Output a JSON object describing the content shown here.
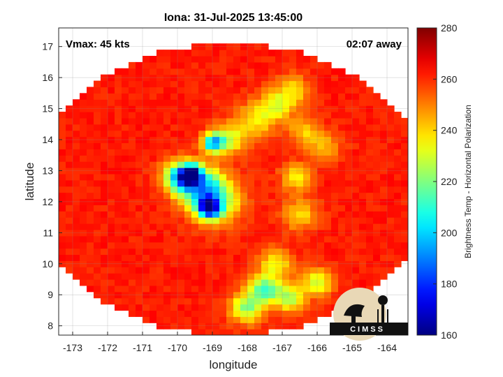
{
  "chart_data": {
    "type": "heatmap",
    "title": "Iona: 31-Jul-2025 13:45:00",
    "xlabel": "longitude",
    "ylabel": "latitude",
    "xlim": [
      -173.4,
      -163.4
    ],
    "ylim": [
      7.7,
      17.6
    ],
    "x_ticks": [
      -173,
      -172,
      -171,
      -170,
      -169,
      -168,
      -167,
      -166,
      -165,
      -164
    ],
    "y_ticks": [
      8,
      9,
      10,
      11,
      12,
      13,
      14,
      15,
      16,
      17
    ],
    "grid": true,
    "annotations": {
      "left": "Vmax: 45 kts",
      "right": "02:07 away"
    },
    "colorbar": {
      "label": "Brightness Temp - Horizontal Polarization",
      "range": [
        160,
        280
      ],
      "ticks": [
        160,
        180,
        200,
        220,
        240,
        260,
        280
      ],
      "colormap": "jet"
    },
    "swath": {
      "center_lon": -168.5,
      "center_lat": 12.4,
      "lon_radius": 5.7,
      "lat_radius": 4.7
    },
    "background_temp": 262,
    "features": [
      {
        "lon": -169.6,
        "lat": 12.9,
        "temp": 172,
        "sigma": 0.18
      },
      {
        "lon": -169.9,
        "lat": 12.8,
        "temp": 200,
        "sigma": 0.35
      },
      {
        "lon": -169.3,
        "lat": 12.5,
        "temp": 215,
        "sigma": 0.45
      },
      {
        "lon": -169.1,
        "lat": 11.8,
        "temp": 192,
        "sigma": 0.22
      },
      {
        "lon": -168.9,
        "lat": 12.0,
        "temp": 222,
        "sigma": 0.5
      },
      {
        "lon": -169.0,
        "lat": 13.9,
        "temp": 205,
        "sigma": 0.2
      },
      {
        "lon": -168.6,
        "lat": 14.0,
        "temp": 228,
        "sigma": 0.35
      },
      {
        "lon": -167.8,
        "lat": 14.6,
        "temp": 238,
        "sigma": 0.4
      },
      {
        "lon": -167.2,
        "lat": 15.1,
        "temp": 236,
        "sigma": 0.35
      },
      {
        "lon": -166.7,
        "lat": 15.6,
        "temp": 240,
        "sigma": 0.35
      },
      {
        "lon": -166.6,
        "lat": 12.8,
        "temp": 236,
        "sigma": 0.3
      },
      {
        "lon": -166.5,
        "lat": 11.6,
        "temp": 238,
        "sigma": 0.35
      },
      {
        "lon": -167.2,
        "lat": 10.0,
        "temp": 235,
        "sigma": 0.35
      },
      {
        "lon": -167.5,
        "lat": 9.2,
        "temp": 215,
        "sigma": 0.3
      },
      {
        "lon": -168.0,
        "lat": 8.6,
        "temp": 222,
        "sigma": 0.35
      },
      {
        "lon": -166.8,
        "lat": 8.9,
        "temp": 225,
        "sigma": 0.3
      },
      {
        "lon": -166.0,
        "lat": 9.4,
        "temp": 228,
        "sigma": 0.3
      },
      {
        "lon": -165.8,
        "lat": 13.8,
        "temp": 244,
        "sigma": 0.35
      },
      {
        "lon": -166.4,
        "lat": 14.3,
        "temp": 242,
        "sigma": 0.3
      }
    ]
  },
  "logo": {
    "text": "CIMSS"
  }
}
